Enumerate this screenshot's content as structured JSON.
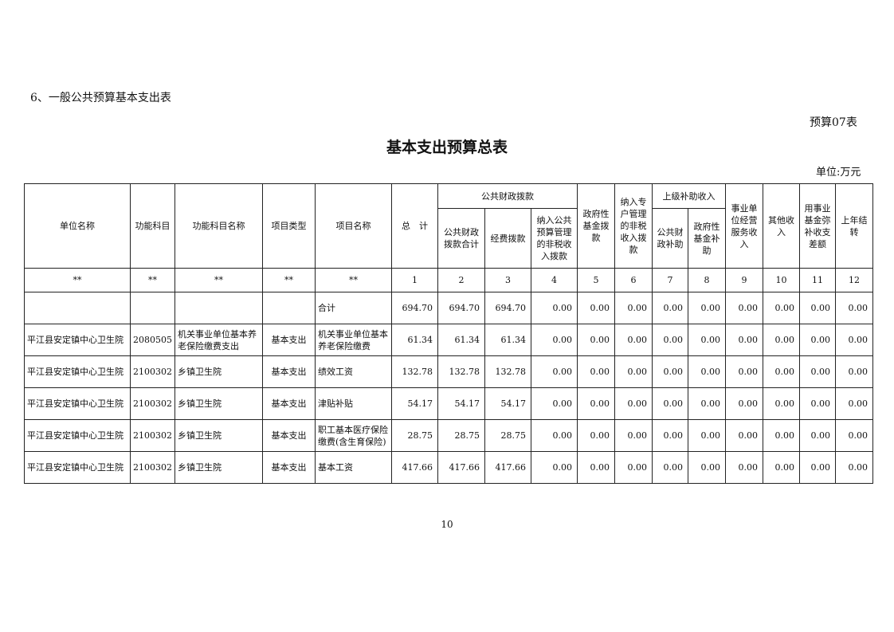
{
  "section_title": "6、一般公共预算基本支出表",
  "table_number": "预算07表",
  "title": "基本支出预算总表",
  "unit": "单位:万元",
  "page_number": "10",
  "headers": {
    "unit_name": "单位名称",
    "func_code": "功能科目",
    "func_name": "功能科目名称",
    "proj_type": "项目类型",
    "proj_name": "项目名称",
    "total": "总　计",
    "public_finance": "公共财政拨款",
    "pf_total": "公共财政拨款合计",
    "pf_funds": "经费拨款",
    "pf_nontax": "纳入公共预算管理的非税收入拨款",
    "gov_fund": "政府性基金拨款",
    "special_nontax": "纳入专户管理的非税收入拨款",
    "upper_subsidy": "上级补助收入",
    "us_public": "公共财政补助",
    "us_gov": "政府性基金补助",
    "business_income": "事业单位经营服务收入",
    "other_income": "其他收入",
    "fund_cover": "用事业基金弥补收支差额",
    "carryover": "上年结转"
  },
  "index_row": [
    "**",
    "**",
    "**",
    "**",
    "**",
    "1",
    "2",
    "3",
    "4",
    "5",
    "6",
    "7",
    "8",
    "9",
    "10",
    "11",
    "12"
  ],
  "rows": [
    {
      "unit": "",
      "code": "",
      "func": "",
      "type": "",
      "name": "合计",
      "values": [
        "694.70",
        "694.70",
        "694.70",
        "0.00",
        "0.00",
        "0.00",
        "0.00",
        "0.00",
        "0.00",
        "0.00",
        "0.00",
        "0.00"
      ]
    },
    {
      "unit": "平江县安定镇中心卫生院",
      "code": "2080505",
      "func": "机关事业单位基本养老保险缴费支出",
      "type": "基本支出",
      "name": "机关事业单位基本养老保险缴费",
      "values": [
        "61.34",
        "61.34",
        "61.34",
        "0.00",
        "0.00",
        "0.00",
        "0.00",
        "0.00",
        "0.00",
        "0.00",
        "0.00",
        "0.00"
      ]
    },
    {
      "unit": "平江县安定镇中心卫生院",
      "code": "2100302",
      "func": "乡镇卫生院",
      "type": "基本支出",
      "name": "绩效工资",
      "values": [
        "132.78",
        "132.78",
        "132.78",
        "0.00",
        "0.00",
        "0.00",
        "0.00",
        "0.00",
        "0.00",
        "0.00",
        "0.00",
        "0.00"
      ]
    },
    {
      "unit": "平江县安定镇中心卫生院",
      "code": "2100302",
      "func": "乡镇卫生院",
      "type": "基本支出",
      "name": "津贴补贴",
      "values": [
        "54.17",
        "54.17",
        "54.17",
        "0.00",
        "0.00",
        "0.00",
        "0.00",
        "0.00",
        "0.00",
        "0.00",
        "0.00",
        "0.00"
      ]
    },
    {
      "unit": "平江县安定镇中心卫生院",
      "code": "2100302",
      "func": "乡镇卫生院",
      "type": "基本支出",
      "name": "职工基本医疗保险缴费(含生育保险)",
      "values": [
        "28.75",
        "28.75",
        "28.75",
        "0.00",
        "0.00",
        "0.00",
        "0.00",
        "0.00",
        "0.00",
        "0.00",
        "0.00",
        "0.00"
      ]
    },
    {
      "unit": "平江县安定镇中心卫生院",
      "code": "2100302",
      "func": "乡镇卫生院",
      "type": "基本支出",
      "name": "基本工资",
      "values": [
        "417.66",
        "417.66",
        "417.66",
        "0.00",
        "0.00",
        "0.00",
        "0.00",
        "0.00",
        "0.00",
        "0.00",
        "0.00",
        "0.00"
      ]
    }
  ]
}
